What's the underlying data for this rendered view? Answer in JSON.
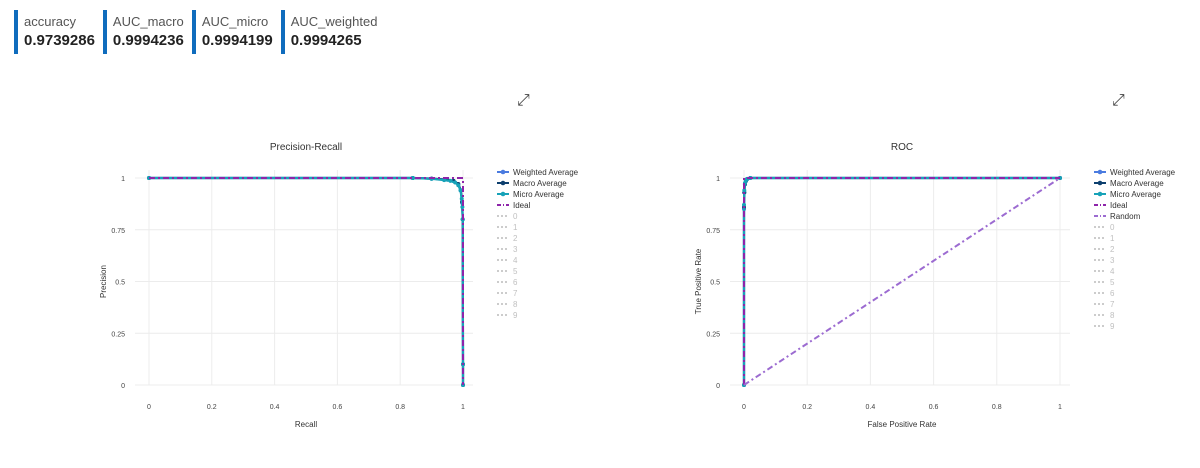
{
  "metrics": [
    {
      "label": "accuracy",
      "value": "0.9739286"
    },
    {
      "label": "AUC_macro",
      "value": "0.9994236"
    },
    {
      "label": "AUC_micro",
      "value": "0.9994199"
    },
    {
      "label": "AUC_weighted",
      "value": "0.9994265"
    }
  ],
  "icons": {
    "expand": "expand-icon"
  },
  "chart_data": [
    {
      "type": "line",
      "title": "Precision-Recall",
      "xlabel": "Recall",
      "ylabel": "Precision",
      "xlim": [
        0,
        1
      ],
      "ylim": [
        0,
        1
      ],
      "xticks": [
        "0",
        "0.2",
        "0.4",
        "0.6",
        "0.8",
        "1"
      ],
      "yticks": [
        "0",
        "0.25",
        "0.5",
        "0.75",
        "1"
      ],
      "grid": true,
      "legend_position": "right",
      "series": [
        {
          "name": "Weighted Average",
          "color": "#4a7be0",
          "style": "solid-markers",
          "points": [
            [
              0,
              1
            ],
            [
              0.84,
              1
            ],
            [
              0.9,
              0.997
            ],
            [
              0.95,
              0.992
            ],
            [
              0.97,
              0.985
            ],
            [
              0.985,
              0.97
            ],
            [
              0.993,
              0.94
            ],
            [
              0.997,
              0.88
            ],
            [
              0.999,
              0.8
            ],
            [
              1,
              0.1
            ],
            [
              1,
              0
            ]
          ]
        },
        {
          "name": "Macro Average",
          "color": "#0d3f6e",
          "style": "solid-markers",
          "points": [
            [
              0,
              1
            ],
            [
              0.84,
              1
            ],
            [
              0.9,
              0.997
            ],
            [
              0.95,
              0.992
            ],
            [
              0.97,
              0.986
            ],
            [
              0.985,
              0.971
            ],
            [
              0.993,
              0.94
            ],
            [
              0.997,
              0.885
            ],
            [
              0.999,
              0.8
            ],
            [
              1,
              0.1
            ],
            [
              1,
              0
            ]
          ]
        },
        {
          "name": "Micro Average",
          "color": "#17a2b8",
          "style": "solid-markers",
          "points": [
            [
              0,
              1
            ],
            [
              0.84,
              1
            ],
            [
              0.9,
              0.996
            ],
            [
              0.94,
              0.99
            ],
            [
              0.96,
              0.986
            ],
            [
              0.975,
              0.978
            ],
            [
              0.985,
              0.965
            ],
            [
              0.992,
              0.94
            ],
            [
              0.996,
              0.9
            ],
            [
              0.998,
              0.86
            ],
            [
              0.999,
              0.8
            ],
            [
              1,
              0.1
            ],
            [
              1,
              0
            ]
          ]
        },
        {
          "name": "Ideal",
          "color": "#8e24aa",
          "style": "dash-dot",
          "points": [
            [
              0,
              1
            ],
            [
              1,
              1
            ],
            [
              1,
              0
            ]
          ]
        },
        {
          "name": "0",
          "color": "#c8c8c8",
          "style": "hidden",
          "points": []
        },
        {
          "name": "1",
          "color": "#c8c8c8",
          "style": "hidden",
          "points": []
        },
        {
          "name": "2",
          "color": "#c8c8c8",
          "style": "hidden",
          "points": []
        },
        {
          "name": "3",
          "color": "#c8c8c8",
          "style": "hidden",
          "points": []
        },
        {
          "name": "4",
          "color": "#c8c8c8",
          "style": "hidden",
          "points": []
        },
        {
          "name": "5",
          "color": "#c8c8c8",
          "style": "hidden",
          "points": []
        },
        {
          "name": "6",
          "color": "#c8c8c8",
          "style": "hidden",
          "points": []
        },
        {
          "name": "7",
          "color": "#c8c8c8",
          "style": "hidden",
          "points": []
        },
        {
          "name": "8",
          "color": "#c8c8c8",
          "style": "hidden",
          "points": []
        },
        {
          "name": "9",
          "color": "#c8c8c8",
          "style": "hidden",
          "points": []
        }
      ]
    },
    {
      "type": "line",
      "title": "ROC",
      "xlabel": "False Positive Rate",
      "ylabel": "True Positive Rate",
      "xlim": [
        0,
        1
      ],
      "ylim": [
        0,
        1
      ],
      "xticks": [
        "0",
        "0.2",
        "0.4",
        "0.6",
        "0.8",
        "1"
      ],
      "yticks": [
        "0",
        "0.25",
        "0.5",
        "0.75",
        "1"
      ],
      "grid": true,
      "legend_position": "right",
      "series": [
        {
          "name": "Weighted Average",
          "color": "#4a7be0",
          "style": "solid-markers",
          "points": [
            [
              0,
              0
            ],
            [
              0,
              0.85
            ],
            [
              0.001,
              0.93
            ],
            [
              0.003,
              0.97
            ],
            [
              0.006,
              0.985
            ],
            [
              0.01,
              0.995
            ],
            [
              0.02,
              1
            ],
            [
              1,
              1
            ]
          ]
        },
        {
          "name": "Macro Average",
          "color": "#0d3f6e",
          "style": "solid-markers",
          "points": [
            [
              0,
              0
            ],
            [
              0,
              0.86
            ],
            [
              0.001,
              0.93
            ],
            [
              0.003,
              0.97
            ],
            [
              0.006,
              0.986
            ],
            [
              0.01,
              0.995
            ],
            [
              0.02,
              1
            ],
            [
              1,
              1
            ]
          ]
        },
        {
          "name": "Micro Average",
          "color": "#17a2b8",
          "style": "solid-markers",
          "points": [
            [
              0,
              0
            ],
            [
              0,
              0.87
            ],
            [
              0.001,
              0.94
            ],
            [
              0.003,
              0.975
            ],
            [
              0.006,
              0.988
            ],
            [
              0.01,
              0.996
            ],
            [
              0.02,
              1
            ],
            [
              1,
              1
            ]
          ]
        },
        {
          "name": "Ideal",
          "color": "#8e24aa",
          "style": "dash-dot",
          "points": [
            [
              0,
              0
            ],
            [
              0,
              1
            ],
            [
              1,
              1
            ]
          ]
        },
        {
          "name": "Random",
          "color": "#9c6bd1",
          "style": "dash-dot",
          "points": [
            [
              0,
              0
            ],
            [
              1,
              1
            ]
          ]
        },
        {
          "name": "0",
          "color": "#c8c8c8",
          "style": "hidden",
          "points": []
        },
        {
          "name": "1",
          "color": "#c8c8c8",
          "style": "hidden",
          "points": []
        },
        {
          "name": "2",
          "color": "#c8c8c8",
          "style": "hidden",
          "points": []
        },
        {
          "name": "3",
          "color": "#c8c8c8",
          "style": "hidden",
          "points": []
        },
        {
          "name": "4",
          "color": "#c8c8c8",
          "style": "hidden",
          "points": []
        },
        {
          "name": "5",
          "color": "#c8c8c8",
          "style": "hidden",
          "points": []
        },
        {
          "name": "6",
          "color": "#c8c8c8",
          "style": "hidden",
          "points": []
        },
        {
          "name": "7",
          "color": "#c8c8c8",
          "style": "hidden",
          "points": []
        },
        {
          "name": "8",
          "color": "#c8c8c8",
          "style": "hidden",
          "points": []
        },
        {
          "name": "9",
          "color": "#c8c8c8",
          "style": "hidden",
          "points": []
        }
      ]
    }
  ]
}
